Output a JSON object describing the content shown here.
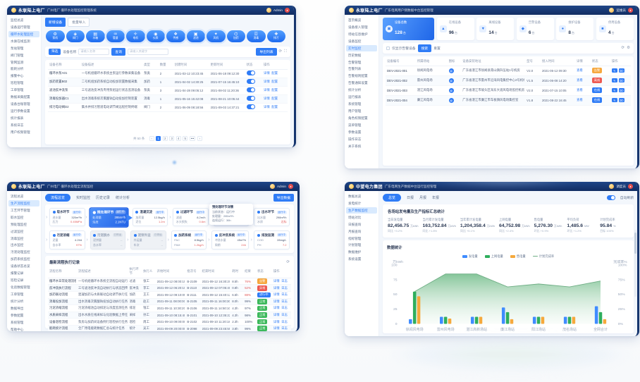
{
  "w1": {
    "titlebar": {
      "app": "永联陆上电厂",
      "subtitle": "广州电厂 循环水处理监控管理系统",
      "user": "Admin"
    },
    "sidebar": [
      {
        "label": "监控总览"
      },
      {
        "label": "设备运行管理"
      },
      {
        "label": "循环水处理监控",
        "state": "active"
      },
      {
        "label": "水质在线监测"
      },
      {
        "label": "泵站管理"
      },
      {
        "label": "阀门管理"
      },
      {
        "label": "管网监测"
      },
      {
        "label": "能耗分析"
      },
      {
        "label": "报警中心"
      },
      {
        "label": "巡检管理"
      },
      {
        "label": "工单管理"
      },
      {
        "label": "数据采集配置"
      },
      {
        "label": "设备台账管理"
      },
      {
        "label": "运行参数设置"
      },
      {
        "label": "统计报表"
      },
      {
        "label": "系统日志"
      },
      {
        "label": "用户权限管理"
      }
    ],
    "toolbar": {
      "add": "新增设备",
      "import": "批量导入"
    },
    "device_types": [
      {
        "icon": "⚙",
        "label": "泵机"
      },
      {
        "icon": "◈",
        "label": "阀门"
      },
      {
        "icon": "▤",
        "label": "水箱"
      },
      {
        "icon": "♒",
        "label": "管道",
        "halo": "halo"
      },
      {
        "icon": "✛",
        "label": "电机",
        "halo": "halo"
      },
      {
        "icon": "◉",
        "label": "仪表",
        "halo": "halo"
      },
      {
        "icon": "❖",
        "label": "传感",
        "halo": "halo"
      },
      {
        "icon": "▣",
        "label": "滤池",
        "halo": "halo"
      },
      {
        "icon": "✦",
        "label": "风机",
        "halo": "halo"
      },
      {
        "icon": "⌬",
        "label": "加药"
      },
      {
        "icon": "☲",
        "label": "消毒"
      },
      {
        "icon": "✚",
        "label": "排污"
      }
    ],
    "filter": {
      "chip": "筛选",
      "name_label": "设备名称",
      "name_placeholder": "请输入名称",
      "search": "查询",
      "keyword_placeholder": "请输入关键字",
      "export": "导出列表"
    },
    "table": {
      "headers": [
        "设备名称",
        "设备描述",
        "类型",
        "数量",
        "创建时间",
        "更新时间",
        "状态",
        "操作"
      ],
      "rows": [
        {
          "name": "循环水泵A01",
          "desc": "一号机组循环水系统主泵运行参数采集设备",
          "type": "泵类",
          "num": "2",
          "created": "2021-03-12 10:23:45",
          "updated": "2021-06-18 09:12:30",
          "a1": "详情",
          "a2": "配置"
        },
        {
          "name": "加药装置B02",
          "desc": "二号机组加药系统自动投加装置数据采集",
          "type": "加药",
          "num": "1",
          "created": "2021-04-02 14:30:25",
          "updated": "2021-07-15 16:45:10",
          "a1": "详情",
          "a2": "配置"
        },
        {
          "name": "滤池反冲洗泵",
          "desc": "三号滤池反冲洗专用泵组运行状态监测设备",
          "type": "泵类",
          "num": "3",
          "created": "2021-04-28 09:05:12",
          "updated": "2021-08-02 11:20:36",
          "a1": "详情",
          "a2": "配置"
        },
        {
          "name": "消毒投加器C1",
          "desc": "出水消毒系统次氯酸钠自动投加控制装置",
          "type": "消毒",
          "num": "1",
          "created": "2021-05-16 15:42:08",
          "updated": "2021-08-21 10:05:44",
          "a1": "详情",
          "a2": "配置"
        },
        {
          "name": "排污电动阀D2",
          "desc": "集水井排污管道电动调节阀远程控制终端",
          "type": "阀门",
          "num": "2",
          "created": "2021-06-09 08:18:56",
          "updated": "2021-09-03 14:37:21",
          "a1": "详情",
          "a2": "配置"
        }
      ]
    },
    "pagination": {
      "total": "共 50 条",
      "prev": "‹",
      "pages": [
        {
          "label": "1",
          "state": "active"
        },
        {
          "label": "2"
        },
        {
          "label": "3"
        },
        {
          "label": "4"
        },
        {
          "label": "5"
        }
      ],
      "more": "•••",
      "next": "›"
    }
  },
  "w2": {
    "titlebar": {
      "app": "永联陆上电厂",
      "subtitle": "广东电网用户侧数据中台监控管理",
      "user": "运维员"
    },
    "sidebar": [
      {
        "label": "首页概览",
        "group": "group"
      },
      {
        "label": "设备接入管理"
      },
      {
        "label": "场站信息维护"
      },
      {
        "label": "设备监控",
        "group": "group"
      },
      {
        "label": "实时监控",
        "state": "active"
      },
      {
        "label": "历史数据"
      },
      {
        "label": "告警管理",
        "group": "group"
      },
      {
        "label": "告警列表"
      },
      {
        "label": "告警规则配置"
      },
      {
        "label": "告警通知设置"
      },
      {
        "label": "统计分析",
        "group": "group"
      },
      {
        "label": "运行报表"
      },
      {
        "label": "系统管理",
        "group": "group"
      },
      {
        "label": "用户管理"
      },
      {
        "label": "角色权限配置"
      },
      {
        "label": "菜单管理"
      },
      {
        "label": "参数设置"
      },
      {
        "label": "操作日志"
      },
      {
        "label": "关于系统"
      }
    ],
    "cards": [
      {
        "label": "设备总数",
        "value": "128",
        "unit": "台",
        "icon": "▣",
        "state": "active"
      },
      {
        "label": "在线设备",
        "value": "96",
        "unit": "台",
        "icon": "▲"
      },
      {
        "label": "离线设备",
        "value": "14",
        "unit": "台",
        "icon": "▼"
      },
      {
        "label": "告警设备",
        "value": "6",
        "unit": "台",
        "icon": "◆"
      },
      {
        "label": "维护设备",
        "value": "8",
        "unit": "台",
        "icon": "●"
      },
      {
        "label": "停用设备",
        "value": "4",
        "unit": "台",
        "icon": "■"
      }
    ],
    "filter": {
      "checkbox_label": "仅显示告警设备",
      "search": "搜索",
      "reset": "重置"
    },
    "table": {
      "headers": [
        "设备编号",
        "所属场站",
        "图标",
        "设备安装地址",
        "型号",
        "接入时间",
        "详情",
        "状态",
        "操作"
      ],
      "rows": [
        {
          "no": "DEV-2021-001",
          "station": "徐闻风电场",
          "icon": "◍",
          "addr": "广东省湛江市徐闻县南山镇升压站1号机房",
          "model": "V2.0",
          "time": "2021-05-12 09:30",
          "link": "查看",
          "badge": "告警",
          "badgeClass": "orange"
        },
        {
          "no": "DEV-2021-002",
          "station": "雷州风电场",
          "icon": "◍",
          "addr": "广东省湛江市雷州市沿海风电集控中心2号机柜",
          "model": "V1.5",
          "time": "2021-06-08 14:20",
          "link": "查看",
          "badge": "离线",
          "badgeClass": "red"
        },
        {
          "no": "DEV-2021-003",
          "station": "湛江风电场",
          "icon": "◍",
          "addr": "广东省湛江市坡头区海东大道风电场监控机房",
          "model": "V2.0",
          "time": "2021-07-15 10:05",
          "link": "查看",
          "badge": "在线",
          "badgeClass": "blue"
        },
        {
          "no": "DEV-2021-004",
          "station": "廉江风电场",
          "icon": "◍",
          "addr": "广东省湛江市廉江市车板镇风电场集控室",
          "model": "V1.8",
          "time": "2021-08-22 16:45",
          "link": "查看",
          "badge": "在线",
          "badgeClass": "blue"
        }
      ]
    }
  },
  "w3": {
    "titlebar": {
      "app": "永联陆上电厂",
      "subtitle": "广州电厂 循环水处理全流程监控",
      "user": "Admin"
    },
    "sidebar": [
      {
        "label": "流程总览"
      },
      {
        "label": "生产流程监控",
        "state": "active"
      },
      {
        "label": "工艺环节管理"
      },
      {
        "label": "取水监控"
      },
      {
        "label": "预处理监控"
      },
      {
        "label": "过滤监控"
      },
      {
        "label": "消毒监控"
      },
      {
        "label": "出水监控"
      },
      {
        "label": "污泥处理监控"
      },
      {
        "label": "加药系统监控"
      },
      {
        "label": "设备状态总览"
      },
      {
        "label": "报警记录"
      },
      {
        "label": "巡检记录"
      },
      {
        "label": "化验数据管理"
      },
      {
        "label": "工单管理"
      },
      {
        "label": "统计分析"
      },
      {
        "label": "数据导出"
      },
      {
        "label": "参数配置"
      },
      {
        "label": "系统管理"
      },
      {
        "label": "帮助中心"
      }
    ],
    "tabs": [
      {
        "label": "流程总览",
        "state": "active"
      },
      {
        "label": "实时监控"
      },
      {
        "label": "历史记录"
      },
      {
        "label": "统计分析"
      }
    ],
    "export": "导出数据",
    "flow1": [
      {
        "title": "取水环节",
        "tag": "运行中",
        "k1": "进水量",
        "v1": "320m³/h",
        "k2": "压力",
        "v2": "0.45MPa"
      },
      {
        "title": "预处理环节",
        "tag": "运行中",
        "k1": "处理量",
        "v1": "285m³/h",
        "k2": "浊度",
        "v2": "2.1NTU",
        "state": "active"
      },
      {
        "title": "混凝沉淀",
        "tag": "运行中",
        "k1": "加药量",
        "v1": "12.5kg/h",
        "k2": "泥位",
        "v2": "1.2m"
      },
      {
        "title": "过滤环节",
        "tag": "运行中",
        "k1": "滤速",
        "v1": "8.2m/h",
        "k2": "水头损失",
        "v2": "0.6m"
      },
      {
        "title": "消毒环节",
        "tag": "运行中",
        "k1": "余氯",
        "v1": "0.35mg/L",
        "k2": "投加量",
        "v2": "3.2kg/h"
      },
      {
        "title": "出水环节",
        "tag": "运行中",
        "k1": "出水量",
        "v1": "298m³/h",
        "k2": "水质",
        "v2": "达标"
      }
    ],
    "flow2": [
      {
        "title": "污泥浓缩",
        "tag": "运行中",
        "k1": "泥量",
        "v1": "4.2t/d",
        "k2": "含水率",
        "v2": "97%"
      },
      {
        "title": "污泥脱水",
        "tag": "已停运",
        "k1": "泥饼量",
        "v1": "--",
        "k2": "含水率",
        "v2": "--",
        "state": "disabled"
      },
      {
        "title": "泥饼外运",
        "tag": "已停运",
        "k1": "外运量",
        "v1": "--",
        "k2": "车次",
        "v2": "--",
        "state": "disabled"
      },
      {
        "title": "加药系统",
        "tag": "运行中",
        "k1": "PAC",
        "v1": "8.5kg/h",
        "k2": "PAM",
        "v2": "1.2kg/h"
      },
      {
        "title": "反冲洗系统",
        "tag": "运行中",
        "k1": "冲洗水量",
        "v1": "45m³/h",
        "k2": "周期",
        "v2": "24h"
      },
      {
        "title": "排放监测",
        "tag": "运行中",
        "k1": "COD",
        "v1": "28mg/L",
        "k2": "PH",
        "v2": "7.2"
      }
    ],
    "popover": {
      "title": "预处理环节详情",
      "lines": [
        {
          "text": "当前状态：运行中"
        },
        {
          "text": "处理量：285m³/h"
        },
        {
          "text": "连续运行：36h"
        }
      ]
    },
    "table": {
      "title": "最新流程执行记录",
      "headers": [
        "流程名称",
        "流程描述",
        "执行环节",
        "执行人",
        "开始时间",
        "批次号",
        "结束时间",
        "耗时",
        "结果",
        "状态",
        "操作"
      ],
      "rows": [
        {
          "name": "循环水日常处理流程",
          "desc": "一号机组循环水系统全流程自动运行任务",
          "step": "过滤",
          "person": "张工",
          "start": "2021-09-12 08:00:15",
          "batch": "B-2109",
          "end": "2021-09-12 16:30:20",
          "dur": "8.5h",
          "result": "76%",
          "resClass": "redtext",
          "badge": "告警",
          "badgeClass": "orange",
          "a1": "详情",
          "a2": "日志"
        },
        {
          "name": "反冲洗执行流程",
          "desc": "三号滤池反冲洗自动执行与状态回传任务",
          "step": "反冲洗",
          "person": "李工",
          "start": "2021-09-12 06:20:10",
          "batch": "B-2110",
          "end": "2021-09-12 07:05:40",
          "dur": "0.8h",
          "result": "52%",
          "resClass": "redtext",
          "badge": "异常",
          "badgeClass": "red",
          "a1": "详情",
          "a2": "日志"
        },
        {
          "name": "加药联动流程",
          "desc": "混凝加药与水质联动自动调节执行任务",
          "step": "加药",
          "person": "王工",
          "start": "2021-09-12 09:10:05",
          "batch": "B-2111",
          "end": "2021-09-12 15:40:12",
          "dur": "6.5h",
          "result": "88%",
          "resClass": "redtext",
          "badge": "进行中",
          "badgeClass": "blue",
          "a1": "详情",
          "a2": "日志"
        },
        {
          "name": "消毒投加流程",
          "desc": "出水消毒次氯酸钠投加自动执行任务",
          "step": "消毒",
          "person": "赵工",
          "start": "2021-09-11 08:00:00",
          "batch": "B-2105",
          "end": "2021-09-11 16:00:30",
          "dur": "8.0h",
          "result": "99%",
          "badge": "正常",
          "badgeClass": "green",
          "a1": "详情",
          "a2": "日志"
        },
        {
          "name": "污泥浓缩流程",
          "desc": "污泥浓缩池自动排泥与浓度监测任务",
          "step": "排泥",
          "person": "钱工",
          "start": "2021-09-11 10:30:20",
          "batch": "B-2106",
          "end": "2021-09-11 14:50:10",
          "dur": "4.3h",
          "result": "97%",
          "badge": "正常",
          "badgeClass": "green",
          "a1": "详情",
          "a2": "日志"
        },
        {
          "name": "水质采样流程",
          "desc": "出水水质在线采样与化验数据上传任务",
          "step": "采样",
          "person": "孙工",
          "start": "2021-09-10 08:15:40",
          "batch": "B-2101",
          "end": "2021-09-10 12:35:22",
          "dur": "4.3h",
          "result": "98%",
          "badge": "正常",
          "badgeClass": "green",
          "a1": "详情",
          "a2": "日志"
        },
        {
          "name": "设备巡检流程",
          "desc": "泵房与加药间设备例行巡检执行任务",
          "step": "巡检",
          "person": "周工",
          "start": "2021-09-10 09:00:00",
          "batch": "B-2102",
          "end": "2021-09-10 11:20:18",
          "dur": "2.3h",
          "result": "100%",
          "badge": "正常",
          "badgeClass": "green",
          "a1": "详情",
          "a2": "日志"
        },
        {
          "name": "能耗统计流程",
          "desc": "全厂用电能耗数据汇总与统计任务",
          "step": "统计",
          "person": "吴工",
          "start": "2021-09-09 20:00:00",
          "batch": "B-2098",
          "end": "2021-09-09 23:45:55",
          "dur": "3.8h",
          "result": "99%",
          "badge": "正常",
          "badgeClass": "green",
          "a1": "详情",
          "a2": "日志"
        }
      ]
    }
  },
  "w4": {
    "titlebar": {
      "app": "中望电力集团",
      "subtitle": "广东电网生产数据中台运行监控管理",
      "user": "调度员"
    },
    "sidebar": [
      {
        "label": "数据总览",
        "group": "group"
      },
      {
        "label": "发电统计"
      },
      {
        "label": "生产数据监控",
        "state": "active"
      },
      {
        "label": "场站对比",
        "group": "group"
      },
      {
        "label": "日报查询"
      },
      {
        "label": "月报查询"
      },
      {
        "label": "指标管理",
        "group": "group"
      },
      {
        "label": "计划管理"
      },
      {
        "label": "数据维护"
      },
      {
        "label": "系统设置"
      }
    ],
    "tabs": [
      {
        "label": "总览",
        "state": "active"
      },
      {
        "label": "日报"
      },
      {
        "label": "月报"
      },
      {
        "label": "年报"
      }
    ],
    "auto_refresh_label": "自动刷新",
    "stats_title": "各场站发电量及生产指标汇总统计",
    "stats": [
      {
        "label": "当日发电量",
        "value": "82,456.75",
        "unit": "万kWh",
        "sub": "同比 +3.2%"
      },
      {
        "label": "当月累计发电量",
        "value": "163,752.84",
        "unit": "万kWh",
        "sub": "同比 +1.8%"
      },
      {
        "label": "当年累计发电量",
        "value": "1,204,358.4",
        "unit": "万kWh",
        "sub": "同比 +5.1%"
      },
      {
        "label": "上网电量",
        "value": "64,752.98",
        "unit": "万kWh",
        "sub": "同比 +2.4%"
      },
      {
        "label": "售电量",
        "value": "5,276.30",
        "unit": "万kWh",
        "sub": "环比 +0.9%"
      },
      {
        "label": "平均负荷",
        "value": "1,485.6",
        "unit": "MW",
        "sub": "环比 +1.2%"
      },
      {
        "label": "计划完成率",
        "value": "95.84",
        "unit": "%",
        "sub": "目标 100%"
      }
    ],
    "chart_title": "数据统计"
  },
  "chart_data": {
    "type": "combo",
    "title": "数据统计",
    "categories": [
      "徐闻风电场",
      "雷州风电场",
      "湛江高新场站",
      "廉江场站",
      "阳江场站",
      "茂名场站",
      "全网合计"
    ],
    "series": [
      {
        "name": "发电量",
        "type": "bar",
        "color": "#3f8cff",
        "values": [
          8,
          12,
          12,
          28,
          12,
          12,
          30
        ]
      },
      {
        "name": "上网电量",
        "type": "bar",
        "color": "#2fae5d",
        "values": [
          55,
          12,
          12,
          20,
          12,
          12,
          20
        ]
      },
      {
        "name": "售电量",
        "type": "bar",
        "color": "#f5a93d",
        "values": [
          47,
          9,
          12,
          8,
          12,
          12,
          8
        ]
      }
    ],
    "area": {
      "name": "计划完成率",
      "type": "area",
      "color": "#6fae85",
      "fill": "#93c8a3",
      "values": [
        55,
        85,
        85,
        63,
        68,
        63,
        73
      ]
    },
    "xlabel": "",
    "ylabel_left": "万kWh",
    "ylabel_right": "完成率%",
    "ylim": [
      0,
      100
    ],
    "yticks": [
      0,
      25,
      50,
      75,
      100
    ],
    "legend_position": "top",
    "grid": false
  }
}
